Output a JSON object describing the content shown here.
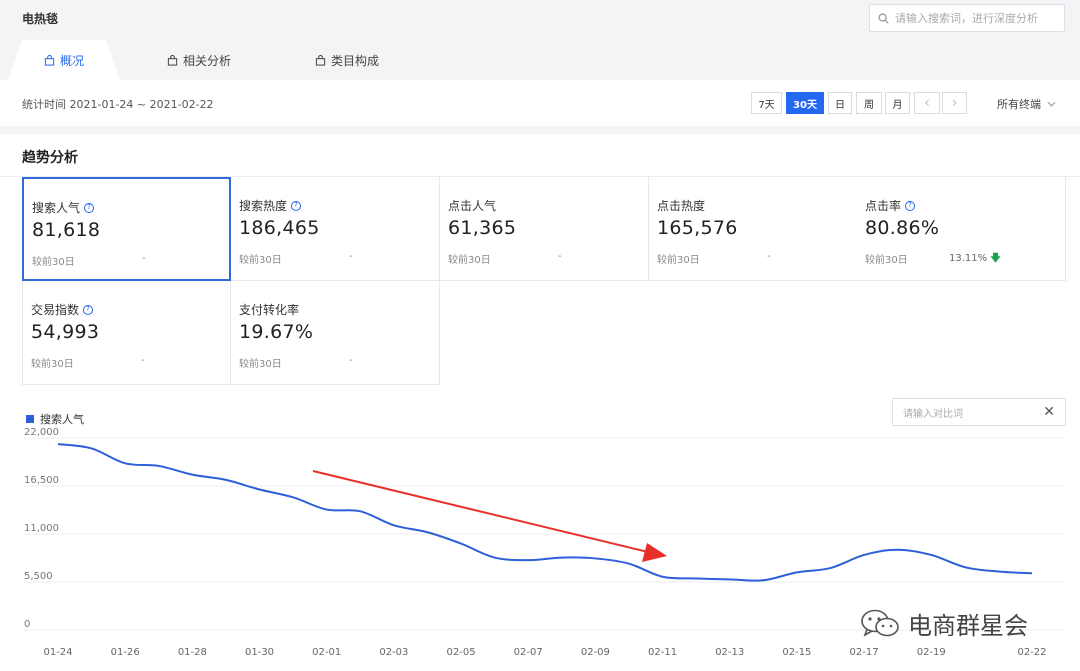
{
  "header": {
    "title": "电热毯",
    "search_placeholder": "请输入搜索词，进行深度分析"
  },
  "tabs": [
    {
      "label": "概况",
      "active": true
    },
    {
      "label": "相关分析",
      "active": false
    },
    {
      "label": "类目构成",
      "active": false
    }
  ],
  "filter": {
    "date_range": "统计时间 2021-01-24 ~ 2021-02-22",
    "periods": [
      "7天",
      "30天",
      "日",
      "周",
      "月"
    ],
    "active_period": "30天",
    "prev": "‹",
    "next": "›",
    "terminal": "所有终端"
  },
  "section_title": "趋势分析",
  "metrics": [
    {
      "label": "搜索人气",
      "value": "81,618",
      "compare": "较前30日",
      "delta": "-",
      "help": true
    },
    {
      "label": "搜索热度",
      "value": "186,465",
      "compare": "较前30日",
      "delta": "-",
      "help": true
    },
    {
      "label": "点击人气",
      "value": "61,365",
      "compare": "较前30日",
      "delta": "-",
      "help": false
    },
    {
      "label": "点击热度",
      "value": "165,576",
      "compare": "较前30日",
      "delta": "-",
      "help": false
    },
    {
      "label": "点击率",
      "value": "80.86%",
      "compare": "较前30日",
      "delta": "13.11%",
      "help": true
    },
    {
      "label": "交易指数",
      "value": "54,993",
      "compare": "较前30日",
      "delta": "-",
      "help": true
    },
    {
      "label": "支付转化率",
      "value": "19.67%",
      "compare": "较前30日",
      "delta": "-",
      "help": false
    }
  ],
  "compare_placeholder": "请输入对比词",
  "compare_close": "✕",
  "help_glyph": "?",
  "down_glyph": "🡇",
  "watermark": "电商群星会",
  "colors": {
    "accent": "#2468f2",
    "series": "#2d5fd8",
    "annotation_arrow": "#e8302a",
    "down": "#1aa34a"
  },
  "chart_data": {
    "type": "line",
    "legend": "搜索人气",
    "x": [
      "01-24",
      "01-25",
      "01-26",
      "01-27",
      "01-28",
      "01-29",
      "01-30",
      "01-31",
      "02-01",
      "02-02",
      "02-03",
      "02-04",
      "02-05",
      "02-06",
      "02-07",
      "02-08",
      "02-09",
      "02-10",
      "02-11",
      "02-12",
      "02-13",
      "02-14",
      "02-15",
      "02-16",
      "02-17",
      "02-18",
      "02-19",
      "02-20",
      "02-21",
      "02-22"
    ],
    "x_tick_labels": [
      "01-24",
      "01-26",
      "01-28",
      "01-30",
      "02-01",
      "02-03",
      "02-05",
      "02-07",
      "02-09",
      "02-11",
      "02-13",
      "02-15",
      "02-17",
      "02-19",
      "02-22"
    ],
    "series": [
      {
        "name": "搜索人气",
        "values": [
          21300,
          20800,
          19100,
          18800,
          17800,
          17200,
          16100,
          15200,
          13800,
          13600,
          12000,
          11200,
          9900,
          8300,
          8000,
          8300,
          8200,
          7600,
          6100,
          5900,
          5800,
          5700,
          6600,
          7100,
          8600,
          9200,
          8600,
          7200,
          6700,
          6500
        ]
      }
    ],
    "y_ticks": [
      "0",
      "5,500",
      "11,000",
      "16,500",
      "22,000"
    ],
    "ylim": [
      0,
      22000
    ],
    "grid": true
  }
}
